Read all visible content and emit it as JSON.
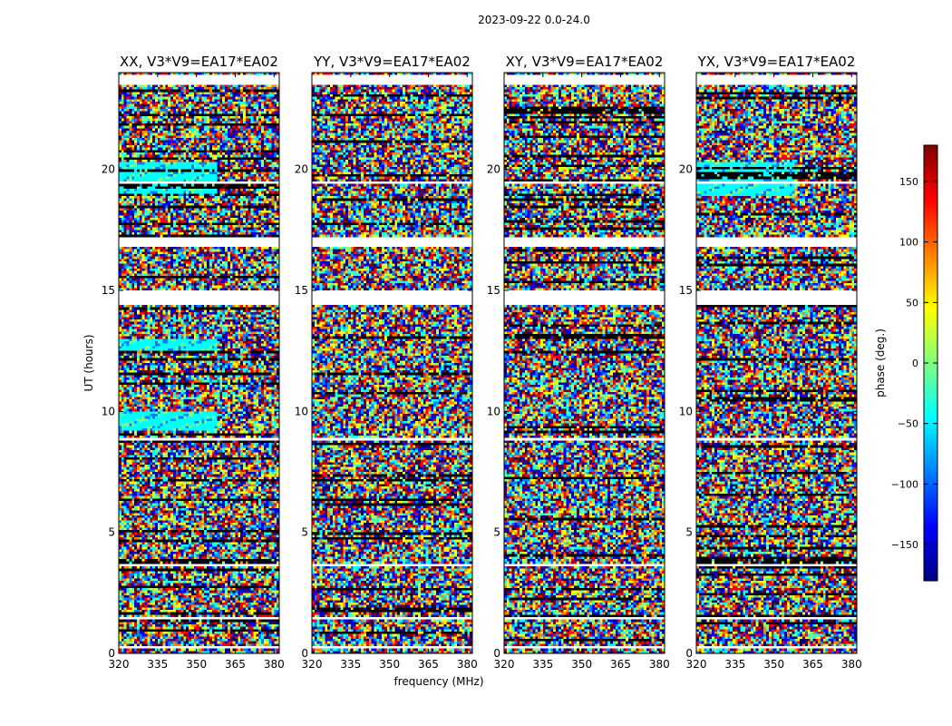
{
  "figure_title": "2023-09-22 0.0-24.0",
  "chart_data": {
    "type": "heatmap",
    "title": "2023-09-22 0.0-24.0",
    "xlabel": "frequency (MHz)",
    "ylabel": "UT (hours)",
    "xlim": [
      320,
      382
    ],
    "ylim": [
      0,
      24
    ],
    "x_ticks": [
      320,
      335,
      350,
      365,
      380
    ],
    "y_ticks": [
      0,
      5,
      10,
      15,
      20
    ],
    "colorbar": {
      "label": "phase (deg.)",
      "range": [
        -180,
        180
      ],
      "ticks": [
        -150,
        -100,
        -50,
        0,
        50,
        100,
        150
      ],
      "tick_labels": [
        "−150",
        "−100",
        "−50",
        "0",
        "50",
        "100",
        "150"
      ],
      "colormap": "jet",
      "colors": [
        "#00007f",
        "#0000ff",
        "#007fff",
        "#00ffff",
        "#7fff7f",
        "#ffff00",
        "#ff7f00",
        "#ff0000",
        "#7f0000"
      ]
    },
    "flag_color": "#ffffff",
    "panels": [
      {
        "title": "XX, V3*V9=EA17*EA02",
        "coherent_ut_ranges": [
          [
            18.9,
            20.3
          ],
          [
            9.2,
            10.0
          ],
          [
            12.5,
            13.0
          ]
        ]
      },
      {
        "title": "YY, V3*V9=EA17*EA02",
        "coherent_ut_ranges": []
      },
      {
        "title": "XY, V3*V9=EA17*EA02",
        "coherent_ut_ranges": []
      },
      {
        "title": "YX, V3*V9=EA17*EA02",
        "coherent_ut_ranges": [
          [
            18.9,
            20.3
          ]
        ]
      }
    ],
    "flagged_ut_ranges": [
      [
        14.4,
        15.0
      ],
      [
        16.8,
        17.2
      ],
      [
        23.5,
        23.9
      ],
      [
        0.2,
        0.3
      ],
      [
        1.4,
        1.5
      ],
      [
        3.6,
        3.7
      ],
      [
        8.8,
        8.9
      ],
      [
        19.4,
        19.5
      ]
    ]
  }
}
